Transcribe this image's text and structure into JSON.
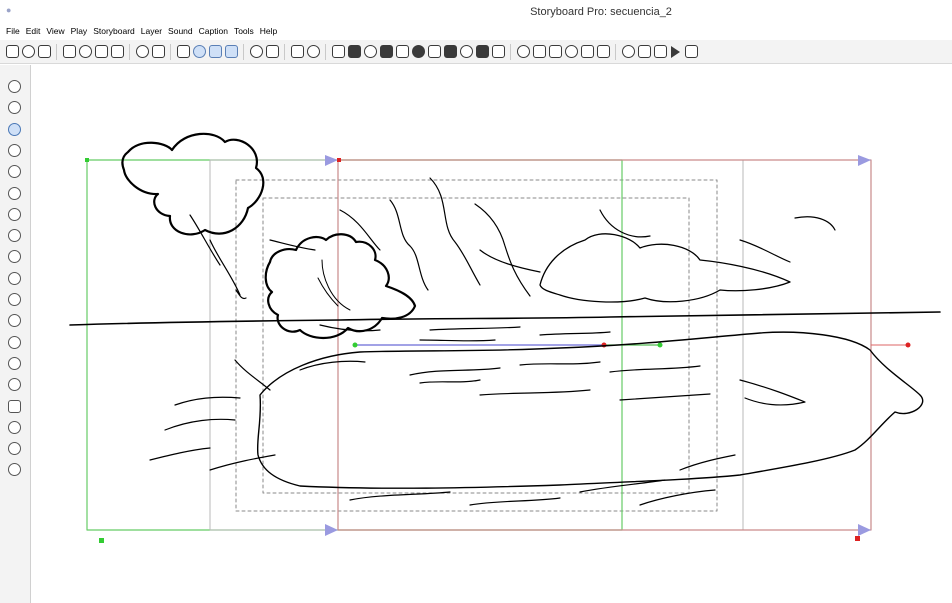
{
  "window": {
    "title": "Storyboard Pro: secuencia_2"
  },
  "menu": [
    "File",
    "Edit",
    "View",
    "Play",
    "Storyboard",
    "Layer",
    "Sound",
    "Caption",
    "Tools",
    "Help"
  ],
  "toolbar_icons": [
    "new-icon",
    "open-icon",
    "save-icon",
    "cut-icon",
    "copy-icon",
    "paste-icon",
    "delete-icon",
    "undo-icon",
    "redo-icon",
    "onion-skin-icon",
    "light-table-icon",
    "grid-icon",
    "safe-area-icon",
    "camera-mask-icon",
    "camera-view-icon",
    "zoom-in-icon",
    "zoom-out-icon",
    "fit-view-icon",
    "new-panel-icon",
    "new-scene-icon",
    "duplicate-panel-icon",
    "split-panel-icon",
    "join-panel-icon",
    "transition-icon",
    "layer-icon",
    "vector-layer-icon",
    "bitmap-layer-icon",
    "sound-icon",
    "caption-icon",
    "library-icon",
    "camera-keyframe-icon",
    "first-frame-icon",
    "previous-frame-icon",
    "next-frame-icon",
    "last-frame-icon",
    "loop-icon",
    "playback-icon",
    "play-icon",
    "stop-icon"
  ],
  "tools": [
    "select-tool-icon",
    "transform-tool-icon",
    "brush-tool-icon",
    "pencil-tool-icon",
    "eraser-tool-icon",
    "text-tool-icon",
    "paint-tool-icon",
    "contour-editor-icon",
    "smooth-tool-icon",
    "cutter-tool-icon",
    "hand-tool-icon",
    "zoom-tool-icon",
    "ink-tool-icon",
    "dropper-tool-icon",
    "stroke-tool-icon",
    "rectangle-tool-icon",
    "ellipse-tool-icon",
    "line-tool-icon",
    "rotate-tool-icon"
  ],
  "colors": {
    "camera_green": "#55bb55",
    "camera_red": "#c04a4a",
    "camera_arrow": "#9a9ae0",
    "safe_area": "#8a8a8a",
    "stroke": "#000000"
  }
}
